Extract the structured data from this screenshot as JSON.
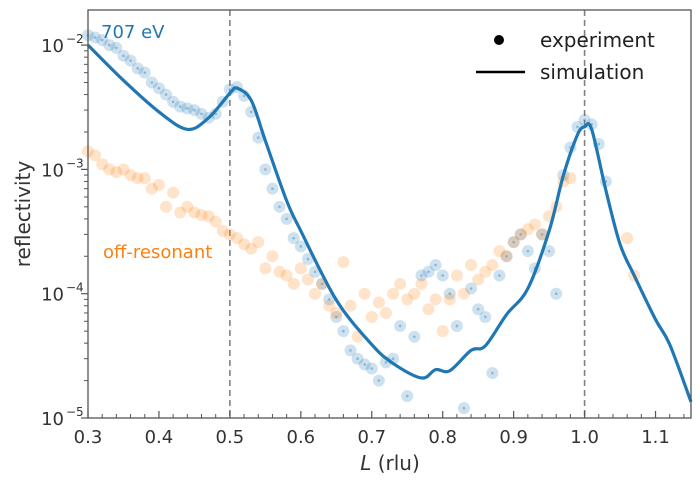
{
  "chart_data": {
    "type": "scatter",
    "xlabel_italic": "L",
    "xlabel_rest": " (rlu)",
    "ylabel": "reflectivity",
    "xlim": [
      0.3,
      1.15
    ],
    "ylim": [
      1e-05,
      0.019
    ],
    "yscale": "log",
    "grid": false,
    "xticks": [
      "0.3",
      "0.4",
      "0.5",
      "0.6",
      "0.7",
      "0.8",
      "0.9",
      "1.0",
      "1.1"
    ],
    "yticks": [
      {
        "base": "10",
        "exp": "−2",
        "value": 0.01
      },
      {
        "base": "10",
        "exp": "−3",
        "value": 0.001
      },
      {
        "base": "10",
        "exp": "−4",
        "value": 0.0001
      },
      {
        "base": "10",
        "exp": "−5",
        "value": 1e-05
      }
    ],
    "vlines": [
      0.5,
      1.0
    ],
    "legend": {
      "placement": "top-right",
      "items": [
        "experiment",
        "simulation"
      ]
    },
    "annotations": {
      "resonant": "707 eV",
      "off": "off-resonant"
    },
    "colors": {
      "resonant": "#1f77b4",
      "off": "#ff7f0e",
      "vline": "#808080"
    },
    "series": [
      {
        "name": "707 eV",
        "kind": "experiment",
        "color": "#1f77b4",
        "x": [
          0.3,
          0.31,
          0.32,
          0.33,
          0.34,
          0.35,
          0.36,
          0.37,
          0.38,
          0.39,
          0.4,
          0.41,
          0.42,
          0.43,
          0.44,
          0.45,
          0.46,
          0.47,
          0.48,
          0.49,
          0.5,
          0.51,
          0.52,
          0.53,
          0.54,
          0.55,
          0.56,
          0.57,
          0.58,
          0.59,
          0.6,
          0.61,
          0.62,
          0.63,
          0.64,
          0.65,
          0.66,
          0.67,
          0.68,
          0.69,
          0.7,
          0.71,
          0.72,
          0.73,
          0.74,
          0.75,
          0.76,
          0.77,
          0.78,
          0.79,
          0.8,
          0.81,
          0.82,
          0.83,
          0.84,
          0.85,
          0.86,
          0.87,
          0.88,
          0.89,
          0.9,
          0.91,
          0.92,
          0.93,
          0.94,
          0.95,
          0.96,
          0.97,
          0.98,
          0.99,
          1.0,
          1.01,
          1.02,
          1.03
        ],
        "y": [
          0.012,
          0.0115,
          0.011,
          0.01,
          0.0095,
          0.0082,
          0.0075,
          0.0065,
          0.006,
          0.005,
          0.0045,
          0.004,
          0.0035,
          0.0032,
          0.0031,
          0.003,
          0.0028,
          0.0026,
          0.0028,
          0.0035,
          0.0044,
          0.0046,
          0.0039,
          0.0029,
          0.0018,
          0.001,
          0.0007,
          0.0005,
          0.0004,
          0.00028,
          0.00024,
          0.00019,
          0.00015,
          0.00012,
          9e-05,
          6.5e-05,
          5e-05,
          3.5e-05,
          3e-05,
          2.7e-05,
          2.5e-05,
          2e-05,
          2.8e-05,
          3e-05,
          5.5e-05,
          1.5e-05,
          4.5e-05,
          0.00014,
          0.00015,
          0.00017,
          0.00014,
          0.0001,
          5.5e-05,
          1.2e-05,
          0.00011,
          7.5e-05,
          6.5e-05,
          2.3e-05,
          0.00014,
          0.0002,
          0.00026,
          0.0003,
          0.00022,
          0.00016,
          0.0003,
          0.00022,
          0.0001,
          0.0009,
          0.0015,
          0.0022,
          0.0025,
          0.0023,
          0.0016,
          0.0008
        ]
      },
      {
        "name": "off-resonant",
        "kind": "experiment",
        "color": "#ff7f0e",
        "x": [
          0.3,
          0.31,
          0.32,
          0.33,
          0.34,
          0.35,
          0.36,
          0.37,
          0.38,
          0.39,
          0.4,
          0.41,
          0.42,
          0.43,
          0.44,
          0.45,
          0.46,
          0.47,
          0.48,
          0.49,
          0.5,
          0.51,
          0.52,
          0.53,
          0.54,
          0.55,
          0.56,
          0.57,
          0.58,
          0.59,
          0.6,
          0.61,
          0.62,
          0.63,
          0.64,
          0.65,
          0.66,
          0.67,
          0.68,
          0.69,
          0.7,
          0.71,
          0.72,
          0.73,
          0.74,
          0.75,
          0.76,
          0.77,
          0.78,
          0.79,
          0.8,
          0.81,
          0.82,
          0.83,
          0.84,
          0.85,
          0.86,
          0.87,
          0.88,
          0.89,
          0.9,
          0.91,
          0.92,
          0.93,
          0.94,
          0.95,
          0.96,
          0.97,
          0.98,
          1.06,
          1.07
        ],
        "y": [
          0.0014,
          0.0013,
          0.0011,
          0.001,
          0.00095,
          0.001,
          0.0009,
          0.00085,
          0.00085,
          0.0007,
          0.00075,
          0.0005,
          0.00065,
          0.00045,
          0.0005,
          0.00045,
          0.00043,
          0.00042,
          0.00038,
          0.00032,
          0.0003,
          0.00028,
          0.00025,
          0.00023,
          0.00026,
          0.00016,
          0.0002,
          0.00015,
          0.00014,
          0.00012,
          0.00016,
          0.00013,
          0.0001,
          0.00012,
          8e-05,
          7e-05,
          0.00018,
          8e-05,
          4.5e-05,
          0.0001,
          6.5e-05,
          8.5e-05,
          7e-05,
          0.0001,
          0.00012,
          9e-05,
          0.0001,
          0.00012,
          7.5e-05,
          9e-05,
          5e-05,
          9e-05,
          0.00014,
          0.0001,
          0.00017,
          0.00013,
          0.00015,
          0.00017,
          0.00022,
          0.0002,
          0.00026,
          0.0003,
          0.00033,
          0.00036,
          0.0003,
          0.00042,
          0.0005,
          0.0008,
          0.00085,
          0.00028,
          0.00014
        ]
      },
      {
        "name": "simulation",
        "kind": "simulation",
        "color": "#1f77b4",
        "x": [
          0.3,
          0.35,
          0.4,
          0.44,
          0.47,
          0.5,
          0.51,
          0.53,
          0.55,
          0.58,
          0.6,
          0.65,
          0.7,
          0.73,
          0.77,
          0.79,
          0.81,
          0.84,
          0.86,
          0.89,
          0.92,
          0.95,
          0.97,
          0.99,
          1.0,
          1.01,
          1.03,
          1.05,
          1.07,
          1.1,
          1.12,
          1.15
        ],
        "y": [
          0.01,
          0.0052,
          0.0029,
          0.0021,
          0.0026,
          0.0041,
          0.0045,
          0.0036,
          0.0017,
          0.00056,
          0.00032,
          8.9e-05,
          3.9e-05,
          2.75e-05,
          2.1e-05,
          2.45e-05,
          2.4e-05,
          3.5e-05,
          3.8e-05,
          6.8e-05,
          0.00011,
          0.00032,
          0.00089,
          0.0019,
          0.0022,
          0.0021,
          0.00068,
          0.00025,
          0.00014,
          6.2e-05,
          3.9e-05,
          1.35e-05
        ]
      }
    ]
  }
}
